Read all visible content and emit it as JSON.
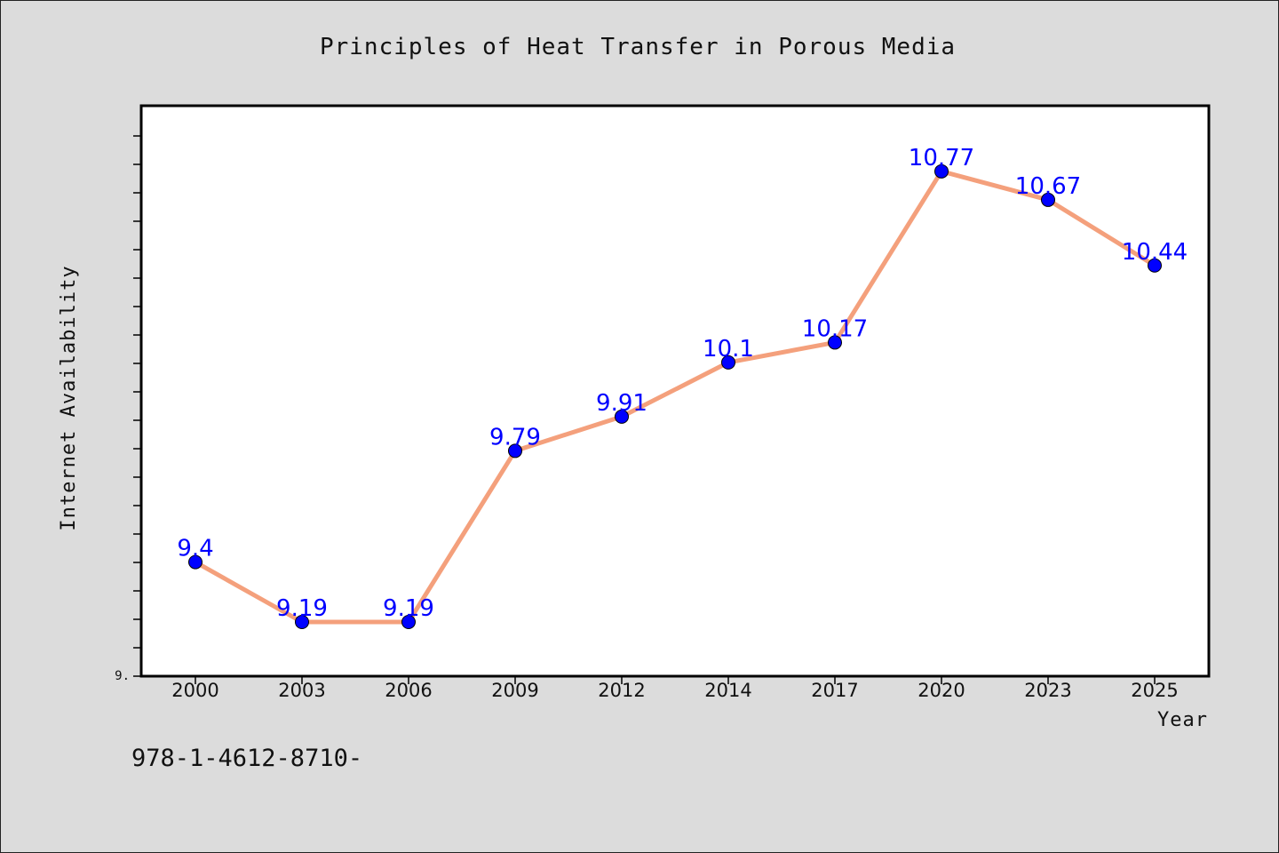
{
  "chart_data": {
    "type": "line",
    "title": "Principles of Heat Transfer in Porous Media",
    "xlabel": "Year",
    "ylabel": "Internet Availability",
    "categories": [
      "2000",
      "2003",
      "2006",
      "2009",
      "2012",
      "2014",
      "2017",
      "2020",
      "2023",
      "2025"
    ],
    "series": [
      {
        "values": [
          9.4,
          9.19,
          9.19,
          9.79,
          9.91,
          10.1,
          10.17,
          10.77,
          10.67,
          10.44
        ],
        "data_labels": [
          "9.4",
          "9.19",
          "9.19",
          "9.79",
          "9.91",
          "10.1",
          "10.17",
          "10.77",
          "10.67",
          "10.44"
        ],
        "line_color": "#f4a07c",
        "marker_color": "#0000ff",
        "label_color": "#0000ff"
      }
    ],
    "ylim": [
      9.0,
      11.0
    ],
    "y_tick_label": "9.",
    "grid": false,
    "legend": "none"
  },
  "footer_text": "978-1-4612-8710-",
  "colors": {
    "background": "#dcdcdc",
    "plot_background": "#ffffff",
    "axis": "#000000"
  }
}
